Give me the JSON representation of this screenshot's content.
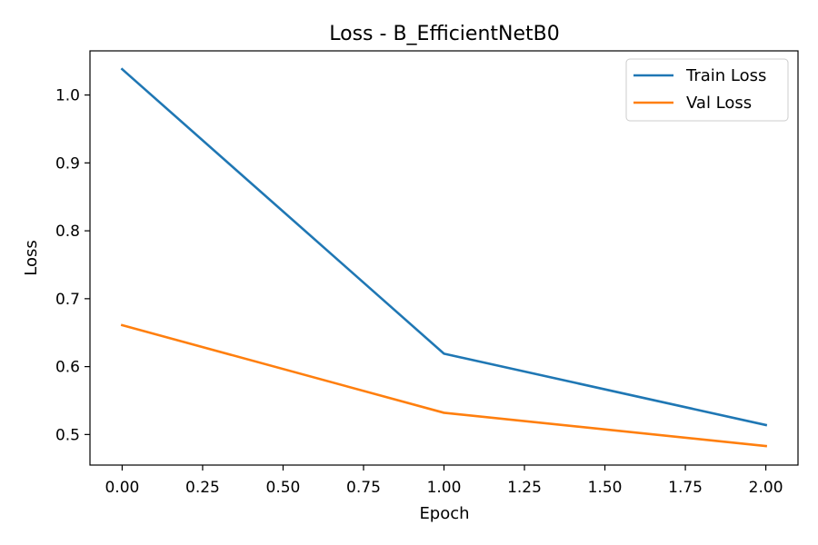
{
  "chart_data": {
    "type": "line",
    "title": "Loss - B_EfficientNetB0",
    "xlabel": "Epoch",
    "ylabel": "Loss",
    "x": [
      0,
      1,
      2
    ],
    "xlim": [
      -0.1,
      2.1
    ],
    "ylim": [
      0.455,
      1.065
    ],
    "xticks": [
      0,
      0.25,
      0.5,
      0.75,
      1,
      1.25,
      1.5,
      1.75,
      2
    ],
    "xtick_labels": [
      "0.00",
      "0.25",
      "0.50",
      "0.75",
      "1.00",
      "1.25",
      "1.50",
      "1.75",
      "2.00"
    ],
    "yticks": [
      0.5,
      0.6,
      0.7,
      0.8,
      0.9,
      1.0
    ],
    "ytick_labels": [
      "0.5",
      "0.6",
      "0.7",
      "0.8",
      "0.9",
      "1.0"
    ],
    "grid": false,
    "legend_position": "top-right",
    "series": [
      {
        "name": "Train Loss",
        "color": "#1f77b4",
        "values": [
          1.038,
          0.619,
          0.514
        ]
      },
      {
        "name": "Val Loss",
        "color": "#ff7f0e",
        "values": [
          0.661,
          0.532,
          0.483
        ]
      }
    ]
  }
}
